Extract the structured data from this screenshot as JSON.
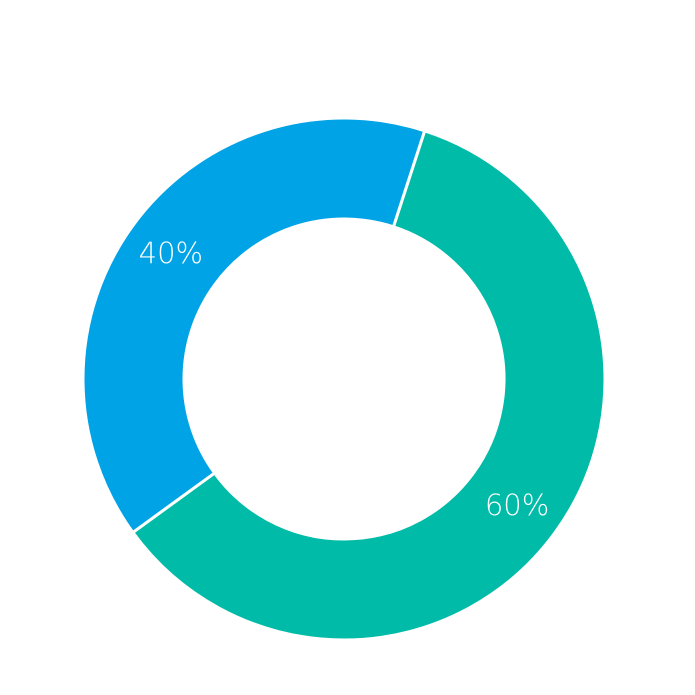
{
  "chart_data": {
    "type": "pie",
    "variant": "donut",
    "title": "",
    "categories": [
      "",
      ""
    ],
    "values": [
      60,
      40
    ],
    "labels": [
      "60%",
      "40%"
    ],
    "colors": [
      "#00BBA7",
      "#00A3E6"
    ],
    "legend": "none",
    "start_angle_deg": 18,
    "direction": "clockwise"
  }
}
